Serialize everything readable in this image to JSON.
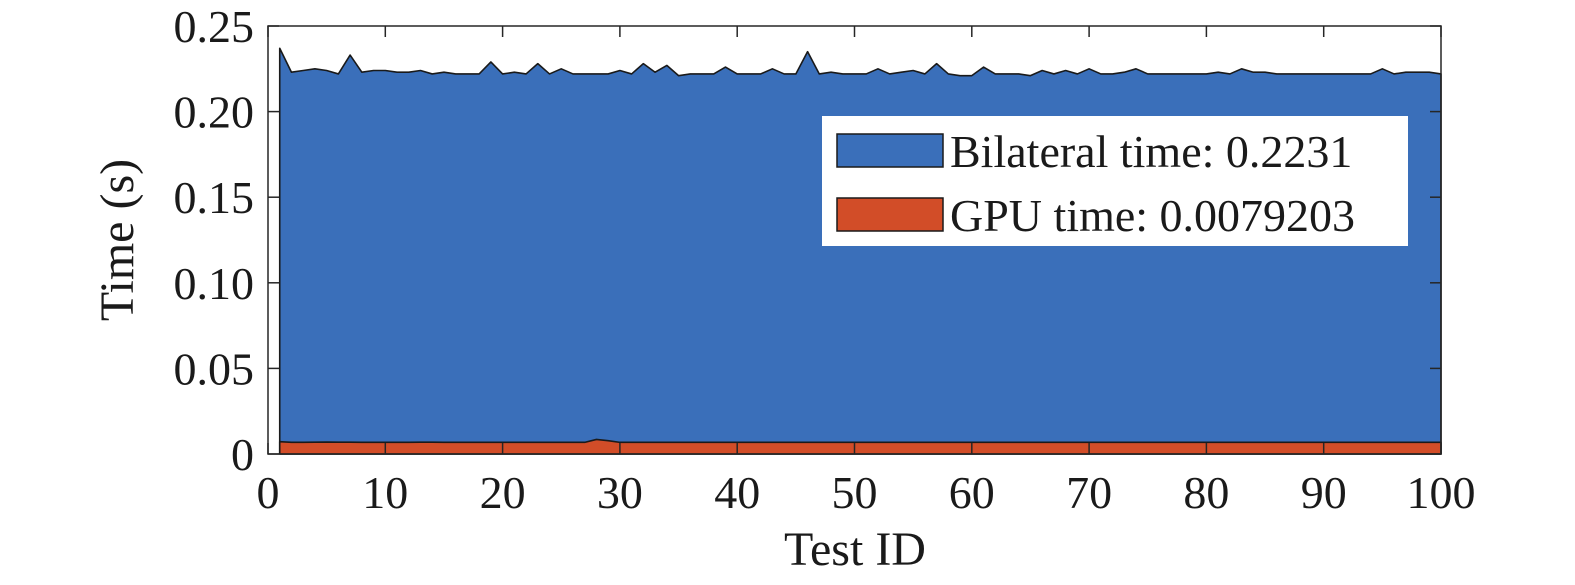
{
  "chart_data": {
    "type": "area",
    "title": "",
    "xlabel": "Test ID",
    "ylabel": "Time (s)",
    "xlim": [
      0,
      100
    ],
    "ylim": [
      0,
      0.25
    ],
    "xticks": [
      0,
      10,
      20,
      30,
      40,
      50,
      60,
      70,
      80,
      90,
      100
    ],
    "xtick_labels": [
      "0",
      "10",
      "20",
      "30",
      "40",
      "50",
      "60",
      "70",
      "80",
      "90",
      "100"
    ],
    "yticks": [
      0,
      0.05,
      0.1,
      0.15,
      0.2,
      0.25
    ],
    "ytick_labels": [
      "0",
      "0.05",
      "0.10",
      "0.15",
      "0.20",
      "0.25"
    ],
    "grid": false,
    "legend_position": "upper-right",
    "x": [
      1,
      2,
      3,
      4,
      5,
      6,
      7,
      8,
      9,
      10,
      11,
      12,
      13,
      14,
      15,
      16,
      17,
      18,
      19,
      20,
      21,
      22,
      23,
      24,
      25,
      26,
      27,
      28,
      29,
      30,
      31,
      32,
      33,
      34,
      35,
      36,
      37,
      38,
      39,
      40,
      41,
      42,
      43,
      44,
      45,
      46,
      47,
      48,
      49,
      50,
      51,
      52,
      53,
      54,
      55,
      56,
      57,
      58,
      59,
      60,
      61,
      62,
      63,
      64,
      65,
      66,
      67,
      68,
      69,
      70,
      71,
      72,
      73,
      74,
      75,
      76,
      77,
      78,
      79,
      80,
      81,
      82,
      83,
      84,
      85,
      86,
      87,
      88,
      89,
      90,
      91,
      92,
      93,
      94,
      95,
      96,
      97,
      98,
      99,
      100
    ],
    "series": [
      {
        "name": "Bilateral time: 0.2231",
        "color": "#3a6fba",
        "values": [
          0.237,
          0.223,
          0.224,
          0.225,
          0.224,
          0.222,
          0.233,
          0.223,
          0.224,
          0.224,
          0.223,
          0.223,
          0.224,
          0.222,
          0.223,
          0.222,
          0.222,
          0.222,
          0.229,
          0.222,
          0.223,
          0.222,
          0.228,
          0.222,
          0.225,
          0.222,
          0.222,
          0.222,
          0.222,
          0.224,
          0.222,
          0.228,
          0.223,
          0.227,
          0.221,
          0.222,
          0.222,
          0.222,
          0.226,
          0.222,
          0.222,
          0.222,
          0.225,
          0.222,
          0.222,
          0.235,
          0.222,
          0.223,
          0.222,
          0.222,
          0.222,
          0.225,
          0.222,
          0.223,
          0.224,
          0.222,
          0.228,
          0.222,
          0.221,
          0.221,
          0.226,
          0.222,
          0.222,
          0.222,
          0.221,
          0.224,
          0.222,
          0.224,
          0.222,
          0.225,
          0.222,
          0.222,
          0.223,
          0.225,
          0.222,
          0.222,
          0.222,
          0.222,
          0.222,
          0.222,
          0.223,
          0.222,
          0.225,
          0.223,
          0.223,
          0.222,
          0.222,
          0.222,
          0.222,
          0.222,
          0.222,
          0.222,
          0.222,
          0.222,
          0.225,
          0.222,
          0.223,
          0.223,
          0.223,
          0.222
        ]
      },
      {
        "name": "GPU time: 0.0079203",
        "color": "#d24d28",
        "values": [
          0.0072,
          0.0068,
          0.0068,
          0.0069,
          0.007,
          0.0069,
          0.0069,
          0.0068,
          0.0068,
          0.0068,
          0.0068,
          0.0068,
          0.0069,
          0.0069,
          0.0068,
          0.0068,
          0.0068,
          0.0068,
          0.0068,
          0.0068,
          0.0068,
          0.0068,
          0.0068,
          0.0068,
          0.0068,
          0.0068,
          0.0068,
          0.0085,
          0.0078,
          0.0068,
          0.0068,
          0.0068,
          0.0068,
          0.0068,
          0.0068,
          0.0068,
          0.0068,
          0.0068,
          0.0068,
          0.0068,
          0.0068,
          0.0068,
          0.0068,
          0.0068,
          0.0068,
          0.0068,
          0.0068,
          0.0068,
          0.0068,
          0.0068,
          0.0068,
          0.0068,
          0.0068,
          0.0068,
          0.0068,
          0.0068,
          0.0068,
          0.0068,
          0.0068,
          0.0068,
          0.0068,
          0.0068,
          0.0068,
          0.0068,
          0.0068,
          0.0068,
          0.0068,
          0.0068,
          0.0068,
          0.0068,
          0.0068,
          0.0068,
          0.0068,
          0.0068,
          0.0068,
          0.0068,
          0.0068,
          0.0068,
          0.0068,
          0.0068,
          0.0068,
          0.0068,
          0.0068,
          0.0068,
          0.0068,
          0.0068,
          0.0068,
          0.0068,
          0.0068,
          0.0068,
          0.0068,
          0.0068,
          0.0068,
          0.0068,
          0.0068,
          0.0068,
          0.0068,
          0.0068,
          0.0068,
          0.0068
        ]
      }
    ]
  }
}
